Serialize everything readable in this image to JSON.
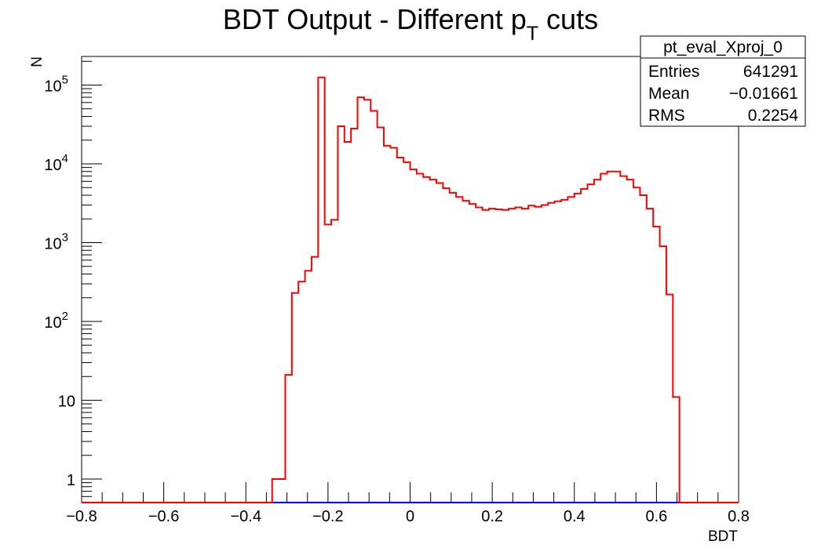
{
  "chart_data": {
    "type": "histogram",
    "title": "BDT Output - Different p",
    "title_sub": "T",
    "title_suffix": " cuts",
    "xlabel": "BDT",
    "ylabel": "N",
    "xlim": [
      -0.8,
      0.8
    ],
    "ylim": [
      0.5,
      230000
    ],
    "yscale": "log",
    "x_ticks": [
      "−0.8",
      "−0.6",
      "−0.4",
      "−0.2",
      "0",
      "0.2",
      "0.4",
      "0.6",
      "0.8"
    ],
    "x_tick_values": [
      -0.8,
      -0.6,
      -0.4,
      -0.2,
      0,
      0.2,
      0.4,
      0.6,
      0.8
    ],
    "y_ticks": [
      {
        "value": 1,
        "base": "1",
        "exp": ""
      },
      {
        "value": 10,
        "base": "10",
        "exp": ""
      },
      {
        "value": 100,
        "base": "10",
        "exp": "2"
      },
      {
        "value": 1000,
        "base": "10",
        "exp": "3"
      },
      {
        "value": 10000,
        "base": "10",
        "exp": "4"
      },
      {
        "value": 100000,
        "base": "10",
        "exp": "5"
      }
    ],
    "bin_width": 0.016,
    "series": [
      {
        "color": "#ff0000",
        "bins": [
          [
            -0.336,
            1
          ],
          [
            -0.32,
            1
          ],
          [
            -0.304,
            21
          ],
          [
            -0.288,
            230
          ],
          [
            -0.272,
            320
          ],
          [
            -0.256,
            440
          ],
          [
            -0.24,
            660
          ],
          [
            -0.224,
            125000
          ],
          [
            -0.208,
            1700
          ],
          [
            -0.192,
            1950
          ],
          [
            -0.176,
            30000
          ],
          [
            -0.16,
            19000
          ],
          [
            -0.144,
            28000
          ],
          [
            -0.128,
            70000
          ],
          [
            -0.112,
            65000
          ],
          [
            -0.096,
            47000
          ],
          [
            -0.08,
            29000
          ],
          [
            -0.064,
            17000
          ],
          [
            -0.048,
            16000
          ],
          [
            -0.032,
            12000
          ],
          [
            -0.016,
            10500
          ],
          [
            0.0,
            8500
          ],
          [
            0.016,
            7500
          ],
          [
            0.032,
            6800
          ],
          [
            0.048,
            6300
          ],
          [
            0.064,
            5700
          ],
          [
            0.08,
            4900
          ],
          [
            0.096,
            4300
          ],
          [
            0.112,
            3800
          ],
          [
            0.128,
            3400
          ],
          [
            0.144,
            3100
          ],
          [
            0.16,
            2800
          ],
          [
            0.176,
            2600
          ],
          [
            0.192,
            2700
          ],
          [
            0.208,
            2650
          ],
          [
            0.224,
            2600
          ],
          [
            0.24,
            2700
          ],
          [
            0.256,
            2800
          ],
          [
            0.272,
            2700
          ],
          [
            0.288,
            2950
          ],
          [
            0.304,
            2850
          ],
          [
            0.32,
            3000
          ],
          [
            0.336,
            3200
          ],
          [
            0.352,
            3350
          ],
          [
            0.368,
            3500
          ],
          [
            0.384,
            3800
          ],
          [
            0.4,
            4200
          ],
          [
            0.416,
            4800
          ],
          [
            0.432,
            5500
          ],
          [
            0.448,
            6300
          ],
          [
            0.464,
            7500
          ],
          [
            0.48,
            8000
          ],
          [
            0.496,
            8000
          ],
          [
            0.512,
            7000
          ],
          [
            0.528,
            6300
          ],
          [
            0.544,
            5000
          ],
          [
            0.56,
            4000
          ],
          [
            0.576,
            2700
          ],
          [
            0.592,
            1600
          ],
          [
            0.608,
            900
          ],
          [
            0.624,
            220
          ],
          [
            0.64,
            11
          ]
        ]
      },
      {
        "color": "#0000ff",
        "x_range": [
          -0.336,
          0.656
        ],
        "value": 0
      }
    ]
  },
  "stats_box": {
    "name": "pt_eval_Xproj_0",
    "rows": [
      {
        "label": "Entries",
        "value": "641291"
      },
      {
        "label": "Mean",
        "value": "−0.01661"
      },
      {
        "label": "RMS",
        "value": "0.2254"
      }
    ]
  }
}
